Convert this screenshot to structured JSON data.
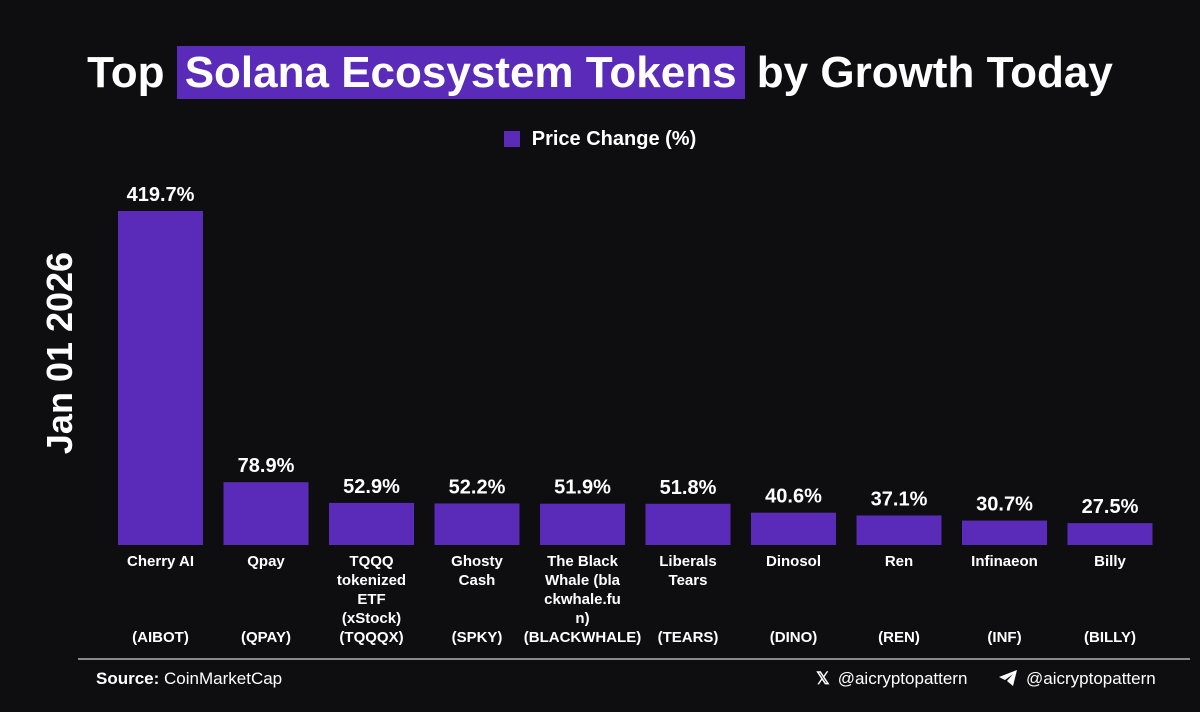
{
  "title": {
    "prefix": "Top ",
    "highlight": "Solana Ecosystem Tokens",
    "suffix": " by Growth Today"
  },
  "date_label": "Jan 01 2026",
  "legend_label": "Price Change (%)",
  "source": {
    "label": "Source:",
    "value": "CoinMarketCap"
  },
  "socials": [
    {
      "icon": "x-logo-icon",
      "handle": "@aicryptopattern"
    },
    {
      "icon": "telegram-icon",
      "handle": "@aicryptopattern"
    }
  ],
  "colors": {
    "bar": "#5a2bb8",
    "background": "#0e0e10",
    "text": "#ffffff"
  },
  "chart_data": {
    "type": "bar",
    "series": [
      {
        "name": "Price Change (%)",
        "values": [
          419.7,
          78.9,
          52.9,
          52.2,
          51.9,
          51.8,
          40.6,
          37.1,
          30.7,
          27.5
        ]
      }
    ],
    "value_labels": [
      "419.7%",
      "78.9%",
      "52.9%",
      "52.2%",
      "51.9%",
      "51.8%",
      "40.6%",
      "37.1%",
      "30.7%",
      "27.5%"
    ],
    "categories": [
      {
        "name": [
          "Cherry AI"
        ],
        "ticker": "(AIBOT)"
      },
      {
        "name": [
          "Qpay"
        ],
        "ticker": "(QPAY)"
      },
      {
        "name": [
          "TQQQ",
          "tokenized",
          "ETF",
          "(xStock)"
        ],
        "ticker": "(TQQQX)"
      },
      {
        "name": [
          "Ghosty",
          "Cash"
        ],
        "ticker": "(SPKY)"
      },
      {
        "name": [
          "The Black",
          "Whale (bla",
          "ckwhale.fu",
          "n)"
        ],
        "ticker": "(BLACKWHALE)"
      },
      {
        "name": [
          "Liberals",
          "Tears"
        ],
        "ticker": "(TEARS)"
      },
      {
        "name": [
          "Dinosol"
        ],
        "ticker": "(DINO)"
      },
      {
        "name": [
          "Ren"
        ],
        "ticker": "(REN)"
      },
      {
        "name": [
          "Infinaeon"
        ],
        "ticker": "(INF)"
      },
      {
        "name": [
          "Billy"
        ],
        "ticker": "(BILLY)"
      }
    ],
    "ylim": [
      0,
      419.7
    ],
    "grid": false,
    "legend_position": "top-center"
  }
}
